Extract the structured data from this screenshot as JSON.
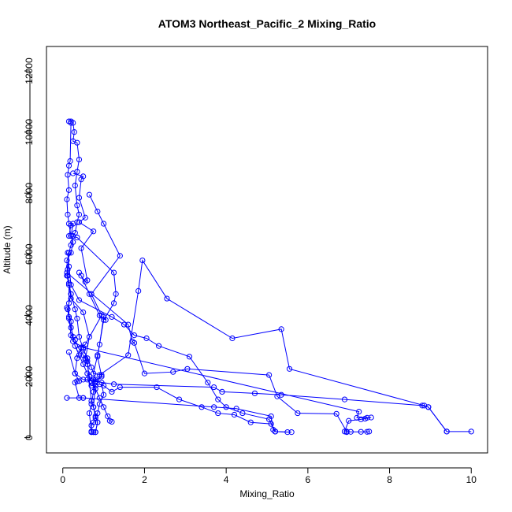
{
  "chart_data": {
    "type": "line",
    "title": "ATOM3 Northeast_Pacific_2 Mixing_Ratio",
    "xlabel": "Mixing_Ratio",
    "ylabel": "Altitude (m)",
    "xlim": [
      -0.4,
      10.4
    ],
    "ylim": [
      -500,
      12800
    ],
    "xticks": [
      0,
      2,
      4,
      6,
      8,
      10
    ],
    "yticks": [
      0,
      2000,
      4000,
      6000,
      8000,
      10000,
      12000
    ],
    "grid": false,
    "color": "#0000ff",
    "series": [
      {
        "points": [
          [
            0.15,
            10350
          ],
          [
            0.2,
            10350
          ],
          [
            0.25,
            10300
          ],
          [
            0.28,
            10000
          ],
          [
            0.25,
            9700
          ],
          [
            0.35,
            9650
          ],
          [
            0.4,
            9100
          ],
          [
            0.35,
            8700
          ],
          [
            0.3,
            8250
          ],
          [
            0.35,
            7600
          ],
          [
            0.4,
            7300
          ],
          [
            0.35,
            7050
          ],
          [
            0.3,
            6700
          ],
          [
            0.25,
            6600
          ],
          [
            0.2,
            6300
          ],
          [
            0.15,
            6050
          ],
          [
            0.12,
            5500
          ],
          [
            0.1,
            5300
          ],
          [
            0.15,
            5000
          ],
          [
            0.2,
            4700
          ],
          [
            0.15,
            4400
          ],
          [
            0.12,
            4200
          ],
          [
            0.15,
            3900
          ],
          [
            0.2,
            3600
          ],
          [
            0.25,
            3300
          ],
          [
            0.3,
            3000
          ],
          [
            0.4,
            2700
          ],
          [
            0.5,
            2400
          ],
          [
            0.6,
            2100
          ],
          [
            0.7,
            1850
          ],
          [
            0.8,
            1600
          ],
          [
            0.9,
            1300
          ],
          [
            1.0,
            1000
          ],
          [
            1.1,
            700
          ],
          [
            1.15,
            550
          ],
          [
            1.2,
            520
          ]
        ]
      },
      {
        "points": [
          [
            0.2,
            10300
          ],
          [
            0.18,
            9050
          ],
          [
            0.15,
            8900
          ],
          [
            0.12,
            8600
          ],
          [
            0.15,
            8100
          ],
          [
            0.1,
            7800
          ],
          [
            0.12,
            7300
          ],
          [
            0.15,
            7000
          ],
          [
            0.2,
            6600
          ],
          [
            0.25,
            6400
          ],
          [
            0.2,
            6050
          ],
          [
            0.1,
            5800
          ],
          [
            0.12,
            5300
          ],
          [
            0.2,
            4700
          ],
          [
            0.3,
            4200
          ],
          [
            0.35,
            3900
          ],
          [
            0.4,
            3300
          ],
          [
            0.5,
            2900
          ],
          [
            0.6,
            2600
          ],
          [
            0.7,
            2300
          ],
          [
            0.8,
            1900
          ],
          [
            0.75,
            1500
          ],
          [
            0.7,
            1100
          ],
          [
            0.65,
            800
          ],
          [
            0.7,
            180
          ],
          [
            0.8,
            180
          ]
        ]
      },
      {
        "points": [
          [
            0.25,
            8650
          ],
          [
            0.5,
            8550
          ],
          [
            0.45,
            8450
          ],
          [
            0.4,
            7850
          ],
          [
            0.55,
            7200
          ],
          [
            0.4,
            7050
          ],
          [
            0.75,
            6750
          ],
          [
            0.45,
            6200
          ],
          [
            0.6,
            5150
          ],
          [
            0.55,
            5100
          ],
          [
            0.4,
            5400
          ],
          [
            0.45,
            5300
          ],
          [
            0.65,
            4700
          ],
          [
            0.9,
            4000
          ],
          [
            1.05,
            3850
          ],
          [
            1.0,
            3950
          ],
          [
            0.9,
            3050
          ],
          [
            0.85,
            2700
          ],
          [
            0.75,
            2100
          ],
          [
            0.95,
            2050
          ],
          [
            0.8,
            1700
          ],
          [
            0.75,
            1000
          ],
          [
            0.85,
            500
          ],
          [
            0.8,
            180
          ],
          [
            0.7,
            180
          ]
        ]
      },
      {
        "points": [
          [
            0.65,
            7950
          ],
          [
            0.85,
            7400
          ],
          [
            1.0,
            7000
          ],
          [
            1.4,
            5950
          ],
          [
            0.7,
            4700
          ],
          [
            0.95,
            4000
          ],
          [
            0.55,
            3050
          ],
          [
            0.45,
            2950
          ],
          [
            0.35,
            2600
          ],
          [
            0.3,
            2100
          ],
          [
            0.4,
            1850
          ],
          [
            0.35,
            1850
          ],
          [
            0.3,
            1800
          ],
          [
            0.4,
            1300
          ],
          [
            0.5,
            1300
          ]
        ]
      },
      {
        "points": [
          [
            0.2,
            6600
          ],
          [
            0.25,
            7000
          ],
          [
            0.2,
            6950
          ],
          [
            0.15,
            6600
          ],
          [
            0.35,
            6550
          ],
          [
            1.25,
            5400
          ],
          [
            1.3,
            4700
          ],
          [
            1.25,
            4400
          ],
          [
            1.0,
            3850
          ],
          [
            0.85,
            2650
          ],
          [
            0.95,
            2000
          ],
          [
            0.7,
            1800
          ],
          [
            0.8,
            1850
          ],
          [
            0.6,
            1900
          ],
          [
            0.7,
            1700
          ],
          [
            0.9,
            1750
          ],
          [
            1.0,
            1700
          ],
          [
            1.2,
            1500
          ],
          [
            1.4,
            1650
          ],
          [
            2.3,
            1650
          ],
          [
            2.85,
            1250
          ],
          [
            3.4,
            1000
          ],
          [
            3.8,
            800
          ],
          [
            4.2,
            750
          ],
          [
            4.6,
            500
          ],
          [
            5.1,
            450
          ],
          [
            5.2,
            200
          ],
          [
            5.5,
            180
          ]
        ]
      },
      {
        "points": [
          [
            0.12,
            6050
          ],
          [
            0.15,
            5600
          ],
          [
            0.2,
            5000
          ],
          [
            0.4,
            4500
          ],
          [
            1.2,
            3950
          ],
          [
            1.5,
            3700
          ],
          [
            1.75,
            3350
          ],
          [
            2.05,
            3250
          ],
          [
            2.35,
            3000
          ],
          [
            3.1,
            2650
          ],
          [
            3.55,
            1800
          ],
          [
            3.8,
            1250
          ],
          [
            4.0,
            1000
          ],
          [
            4.4,
            800
          ],
          [
            5.05,
            600
          ],
          [
            5.2,
            200
          ],
          [
            5.6,
            180
          ]
        ]
      },
      {
        "points": [
          [
            0.1,
            5400
          ],
          [
            1.6,
            3700
          ],
          [
            1.7,
            3150
          ],
          [
            1.75,
            3100
          ],
          [
            2.0,
            2100
          ],
          [
            2.7,
            2150
          ],
          [
            3.05,
            2250
          ],
          [
            5.05,
            2050
          ],
          [
            5.25,
            1350
          ],
          [
            5.75,
            800
          ],
          [
            6.7,
            780
          ],
          [
            6.95,
            200
          ],
          [
            7.05,
            190
          ],
          [
            7.3,
            190
          ],
          [
            7.45,
            190
          ],
          [
            7.5,
            200
          ]
        ]
      },
      {
        "points": [
          [
            0.9,
            2050
          ],
          [
            1.6,
            2700
          ],
          [
            1.85,
            4800
          ],
          [
            1.95,
            5800
          ],
          [
            2.55,
            4550
          ],
          [
            4.15,
            3250
          ],
          [
            5.35,
            3550
          ],
          [
            5.55,
            2250
          ],
          [
            8.85,
            1050
          ],
          [
            8.95,
            1000
          ],
          [
            9.4,
            200
          ],
          [
            10.0,
            200
          ]
        ]
      },
      {
        "points": [
          [
            0.1,
            4250
          ],
          [
            0.2,
            3800
          ],
          [
            0.25,
            3150
          ],
          [
            0.5,
            2950
          ],
          [
            7.25,
            850
          ],
          [
            7.2,
            650
          ],
          [
            7.45,
            650
          ],
          [
            7.55,
            660
          ],
          [
            7.4,
            620
          ],
          [
            7.3,
            600
          ],
          [
            7.0,
            550
          ],
          [
            6.9,
            200
          ],
          [
            6.95,
            180
          ]
        ]
      },
      {
        "points": [
          [
            0.1,
            1300
          ],
          [
            0.5,
            1300
          ],
          [
            3.7,
            1000
          ],
          [
            4.25,
            950
          ],
          [
            5.1,
            700
          ],
          [
            5.15,
            260
          ],
          [
            5.2,
            200
          ]
        ]
      },
      {
        "points": [
          [
            0.15,
            2800
          ],
          [
            0.3,
            2100
          ],
          [
            0.5,
            1900
          ],
          [
            1.25,
            1750
          ],
          [
            3.7,
            1650
          ],
          [
            3.9,
            1500
          ],
          [
            4.7,
            1450
          ],
          [
            5.35,
            1400
          ],
          [
            6.9,
            1250
          ],
          [
            8.8,
            1050
          ],
          [
            8.95,
            1000
          ],
          [
            9.4,
            200
          ]
        ]
      },
      {
        "points": [
          [
            0.12,
            5300
          ],
          [
            0.2,
            4550
          ],
          [
            0.5,
            4100
          ],
          [
            0.65,
            3300
          ],
          [
            0.55,
            2550
          ],
          [
            0.6,
            2400
          ],
          [
            0.65,
            2000
          ],
          [
            0.75,
            1900
          ],
          [
            0.95,
            1800
          ],
          [
            1.0,
            1400
          ],
          [
            0.9,
            1100
          ],
          [
            0.85,
            800
          ],
          [
            0.8,
            700
          ],
          [
            0.75,
            500
          ],
          [
            0.7,
            400
          ],
          [
            0.7,
            200
          ],
          [
            0.75,
            180
          ]
        ]
      },
      {
        "points": [
          [
            0.15,
            5050
          ],
          [
            0.15,
            3950
          ],
          [
            0.2,
            3350
          ],
          [
            0.3,
            3200
          ],
          [
            0.4,
            2900
          ],
          [
            0.5,
            2700
          ],
          [
            0.55,
            2600
          ],
          [
            0.6,
            2500
          ],
          [
            0.7,
            1200
          ],
          [
            0.75,
            1000
          ],
          [
            0.8,
            650
          ],
          [
            0.85,
            500
          ],
          [
            0.8,
            180
          ],
          [
            0.75,
            180
          ]
        ]
      }
    ]
  }
}
